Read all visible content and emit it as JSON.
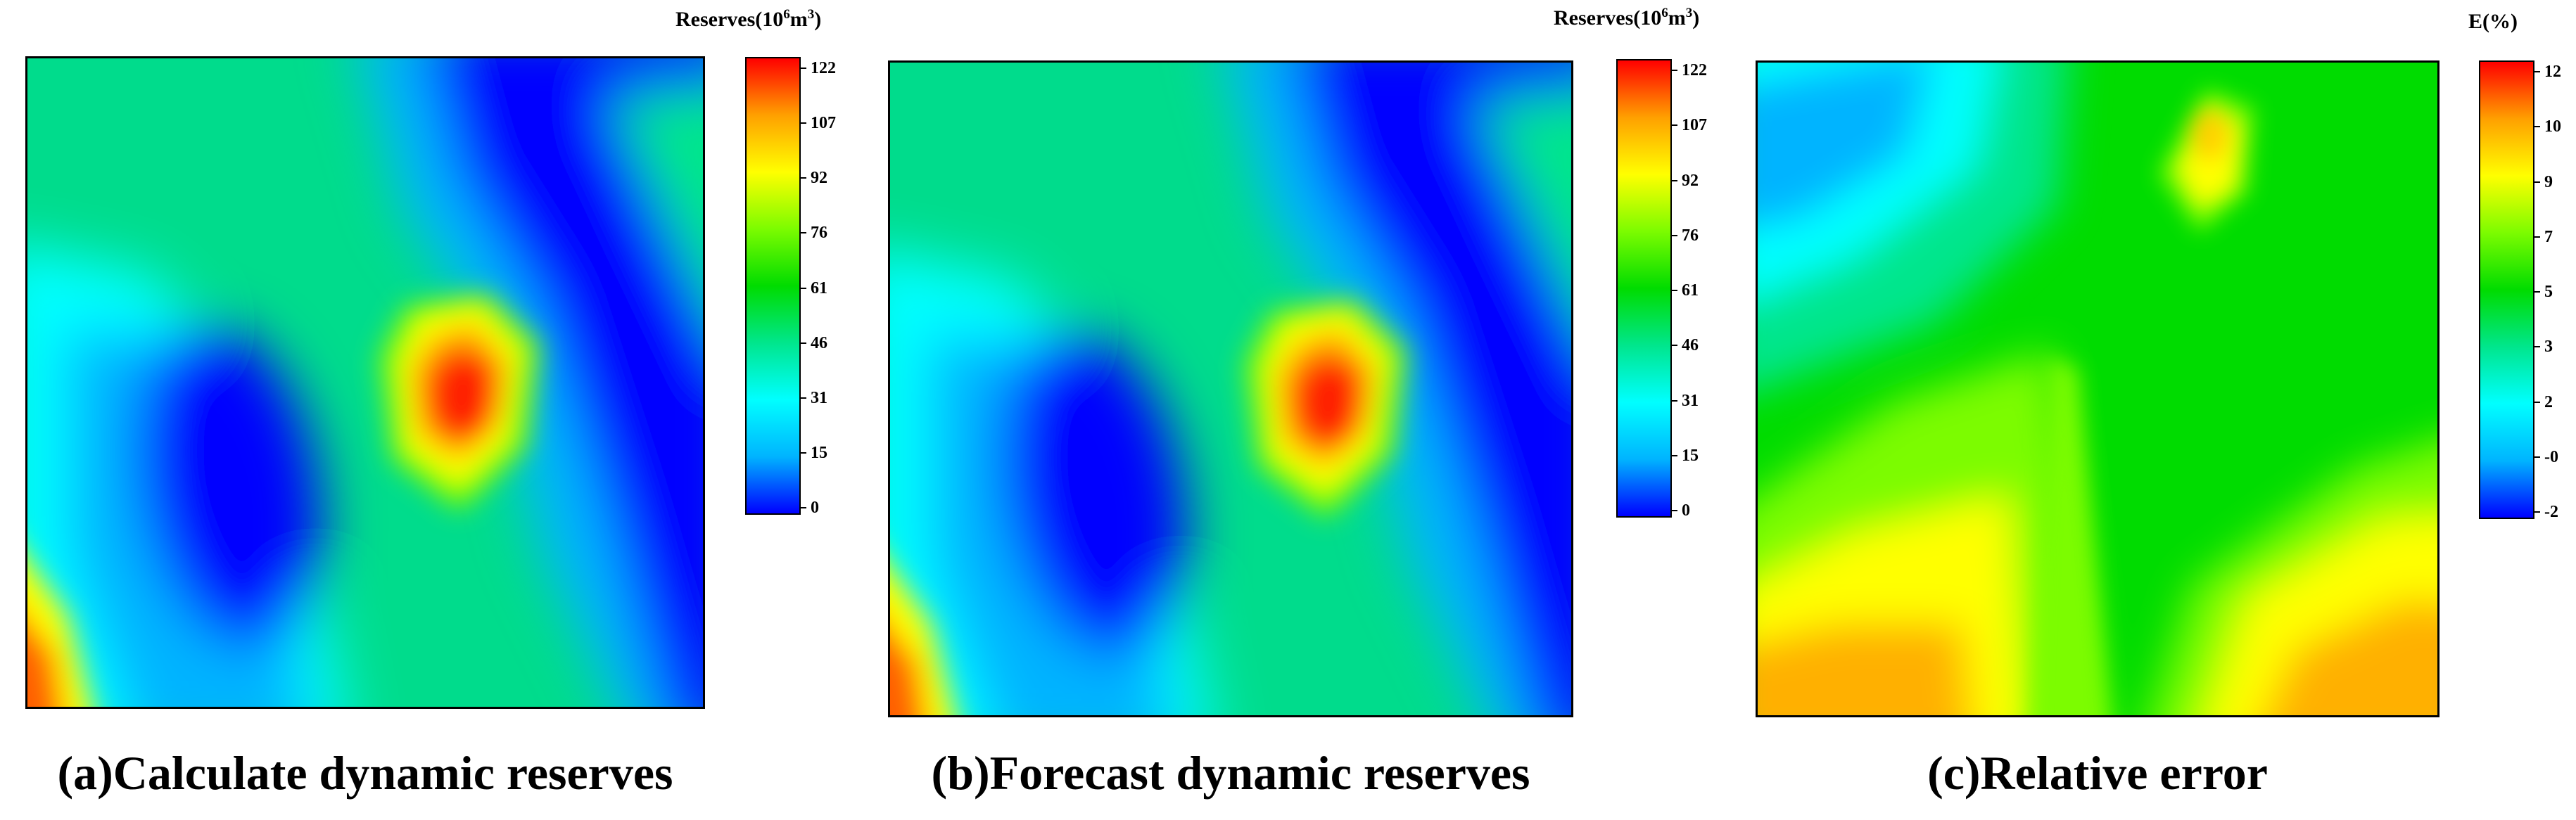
{
  "chart_data": [
    {
      "type": "heatmap",
      "caption": "(a)Calculate dynamic reserves",
      "colorbar": {
        "title_prefix": "Reserves(10",
        "title_sup": "6",
        "title_mid": "m",
        "title_sup2": "3",
        "title_suffix": ")",
        "ticks": [
          "122",
          "107",
          "92",
          "76",
          "61",
          "46",
          "31",
          "15",
          "0"
        ],
        "range": [
          -2,
          125
        ]
      },
      "colors": [
        "#0000ff",
        "#00b4ff",
        "#00ffff",
        "#00e68c",
        "#00dc00",
        "#7cfc00",
        "#ffff00",
        "#ffa000",
        "#ff0000"
      ]
    },
    {
      "type": "heatmap",
      "caption": "(b)Forecast dynamic reserves",
      "colorbar": {
        "title_prefix": "Reserves(10",
        "title_sup": "6",
        "title_mid": "m",
        "title_sup2": "3",
        "title_suffix": ")",
        "ticks": [
          "122",
          "107",
          "92",
          "76",
          "61",
          "46",
          "31",
          "15",
          "0"
        ],
        "range": [
          -2,
          125
        ]
      },
      "colors": [
        "#0000ff",
        "#00b4ff",
        "#00ffff",
        "#00e68c",
        "#00dc00",
        "#7cfc00",
        "#ffff00",
        "#ffa000",
        "#ff0000"
      ]
    },
    {
      "type": "heatmap",
      "caption": "(c)Relative error",
      "colorbar": {
        "title_prefix": "E(%)",
        "title_sup": "",
        "title_mid": "",
        "title_sup2": "",
        "title_suffix": "",
        "ticks": [
          "12",
          "10",
          "9",
          "7",
          "5",
          "3",
          "2",
          "-0",
          "-2"
        ],
        "range": [
          -2.7,
          12.6
        ]
      },
      "colors": [
        "#0000ff",
        "#00b4ff",
        "#00ffff",
        "#00e68c",
        "#00dc00",
        "#7cfc00",
        "#ffff00",
        "#ffa000",
        "#ff0000"
      ]
    }
  ]
}
